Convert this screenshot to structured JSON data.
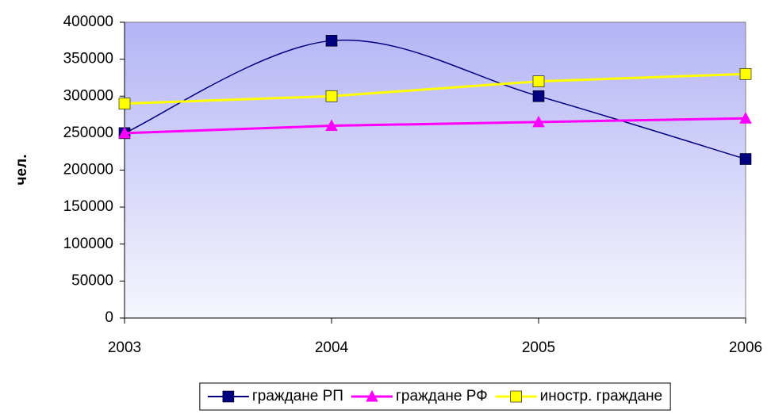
{
  "chart_data": {
    "type": "line",
    "y_label": "чел.",
    "x": [
      2003,
      2004,
      2005,
      2006
    ],
    "xlim": [
      2003,
      2006
    ],
    "xticks": [
      2003,
      2004,
      2005,
      2006
    ],
    "ylim": [
      0,
      400000
    ],
    "yticks": [
      0,
      50000,
      100000,
      150000,
      200000,
      250000,
      300000,
      350000,
      400000
    ],
    "series": [
      {
        "name": "граждане РП",
        "color": "#000080",
        "marker": "square",
        "smooth": true,
        "values": [
          250000,
          375000,
          300000,
          215000
        ]
      },
      {
        "name": "граждане РФ",
        "color": "#ff00ff",
        "marker": "triangle",
        "smooth": false,
        "values": [
          250000,
          260000,
          265000,
          270000
        ]
      },
      {
        "name": "иностр. граждане",
        "color": "#ffff00",
        "marker": "square",
        "smooth": false,
        "values": [
          290000,
          300000,
          320000,
          330000
        ]
      }
    ],
    "legend": "bottom"
  }
}
